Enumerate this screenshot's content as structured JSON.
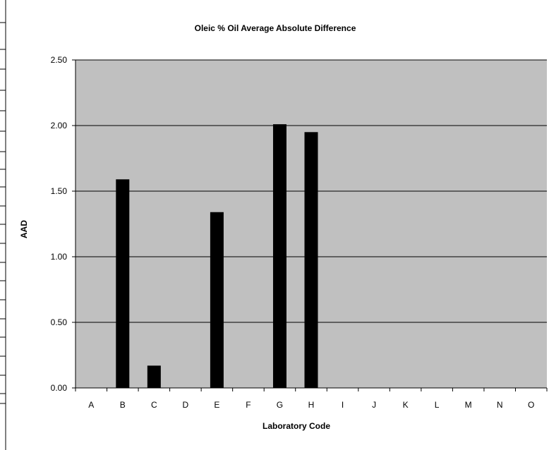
{
  "chart_data": {
    "type": "bar",
    "title": "Oleic % Oil Average Absolute Difference",
    "xlabel": "Laboratory Code",
    "ylabel": "AAD",
    "categories": [
      "A",
      "B",
      "C",
      "D",
      "E",
      "F",
      "G",
      "H",
      "I",
      "J",
      "K",
      "L",
      "M",
      "N",
      "O"
    ],
    "values": [
      0,
      1.59,
      0.17,
      0,
      1.34,
      0,
      2.01,
      1.95,
      0,
      0,
      0,
      0,
      0,
      0,
      0
    ],
    "ylim": [
      0,
      2.5
    ],
    "yticks": [
      "0.00",
      "0.50",
      "1.00",
      "1.50",
      "2.00",
      "2.50"
    ],
    "grid": true,
    "legend": "none",
    "colors": {
      "plot_bg": "#c0c0c0",
      "bar": "#000000",
      "grid": "#000000"
    }
  }
}
